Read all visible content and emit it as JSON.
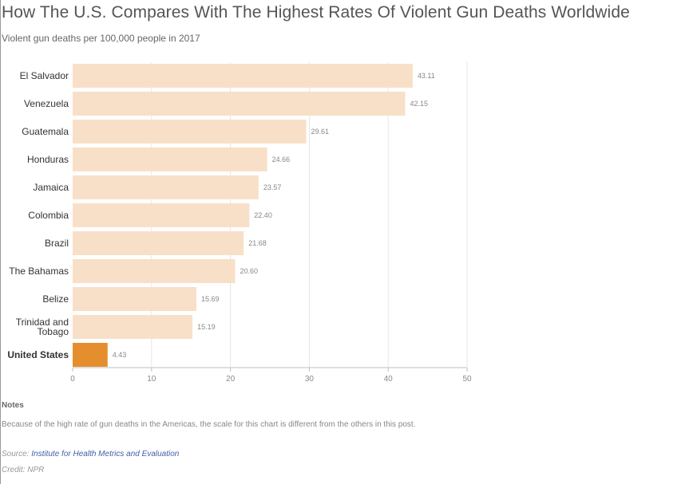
{
  "chart_data": {
    "type": "bar",
    "orientation": "horizontal",
    "title": "How The U.S. Compares With The Highest Rates Of Violent Gun Deaths Worldwide",
    "subtitle": "Violent gun deaths per 100,000 people in 2017",
    "categories": [
      [
        "El Salvador"
      ],
      [
        "Venezuela"
      ],
      [
        "Guatemala"
      ],
      [
        "Honduras"
      ],
      [
        "Jamaica"
      ],
      [
        "Colombia"
      ],
      [
        "Brazil"
      ],
      [
        "The Bahamas"
      ],
      [
        "Belize"
      ],
      [
        "Trinidad and",
        "Tobago"
      ],
      [
        "United States"
      ]
    ],
    "values": [
      43.11,
      42.15,
      29.61,
      24.66,
      23.57,
      22.4,
      21.68,
      20.6,
      15.69,
      15.19,
      4.43
    ],
    "value_labels": [
      "43.11",
      "42.15",
      "29.61",
      "24.66",
      "23.57",
      "22.40",
      "21.68",
      "20.60",
      "15.69",
      "15.19",
      "4.43"
    ],
    "highlight_index": 10,
    "xlim": [
      0,
      50
    ],
    "xticks": [
      0,
      10,
      20,
      30,
      40,
      50
    ],
    "grid": true,
    "colors": {
      "bar": "#f8e0c8",
      "highlight": "#e58e2d",
      "grid": "#e6e6e6",
      "axis": "#bfbfbf",
      "category_label": "#333333",
      "value_label": "#888888",
      "tick_label": "#888888"
    }
  },
  "notes": {
    "heading": "Notes",
    "text": "Because of the high rate of gun deaths in the Americas, the scale for this chart is different from the others in this post."
  },
  "source": {
    "label": "Source:",
    "link_text": "Institute for Health Metrics and Evaluation"
  },
  "credit": "Credit: NPR"
}
